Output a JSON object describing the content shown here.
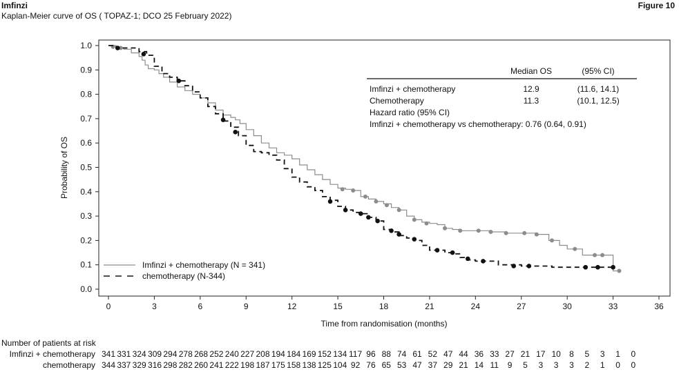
{
  "header": {
    "brand": "Imfinzi",
    "subtitle": "Kaplan-Meier curve of OS ( TOPAZ-1; DCO 25 February 2022)",
    "figure_label": "Figure 10"
  },
  "colors": {
    "imfinzi": "#8c8c8c",
    "chemo": "#111111",
    "axis": "#222222"
  },
  "chart_data": {
    "type": "line",
    "title": "",
    "xlabel": "Time from randomisation (months)",
    "ylabel": "Probability of OS",
    "xlim": [
      0,
      36
    ],
    "ylim": [
      0,
      1
    ],
    "x_ticks": [
      0,
      3,
      6,
      9,
      12,
      15,
      18,
      21,
      24,
      27,
      30,
      33,
      36
    ],
    "y_ticks": [
      0.0,
      0.1,
      0.2,
      0.3,
      0.4,
      0.5,
      0.6,
      0.7,
      0.8,
      0.9,
      1.0
    ],
    "legend_position": "bottom-left",
    "series": [
      {
        "name": "Imfinzi + chemotherapy (N = 341)",
        "style": "solid",
        "points": [
          [
            0,
            1.0
          ],
          [
            0.5,
            0.99
          ],
          [
            1.0,
            0.985
          ],
          [
            1.5,
            0.97
          ],
          [
            2.0,
            0.955
          ],
          [
            2.2,
            0.94
          ],
          [
            2.4,
            0.92
          ],
          [
            2.6,
            0.905
          ],
          [
            3.0,
            0.9
          ],
          [
            3.3,
            0.885
          ],
          [
            3.6,
            0.87
          ],
          [
            4.0,
            0.85
          ],
          [
            4.5,
            0.83
          ],
          [
            5.0,
            0.815
          ],
          [
            5.5,
            0.8
          ],
          [
            6.0,
            0.785
          ],
          [
            6.5,
            0.765
          ],
          [
            7.0,
            0.735
          ],
          [
            7.5,
            0.715
          ],
          [
            8.0,
            0.705
          ],
          [
            8.3,
            0.695
          ],
          [
            8.6,
            0.68
          ],
          [
            9.0,
            0.655
          ],
          [
            9.5,
            0.63
          ],
          [
            10.0,
            0.6
          ],
          [
            10.5,
            0.58
          ],
          [
            11.0,
            0.56
          ],
          [
            11.5,
            0.55
          ],
          [
            12.0,
            0.535
          ],
          [
            12.5,
            0.51
          ],
          [
            13.0,
            0.49
          ],
          [
            13.5,
            0.47
          ],
          [
            14.0,
            0.45
          ],
          [
            14.5,
            0.43
          ],
          [
            15.0,
            0.415
          ],
          [
            15.5,
            0.41
          ],
          [
            16.0,
            0.405
          ],
          [
            16.5,
            0.38
          ],
          [
            17.0,
            0.37
          ],
          [
            17.5,
            0.36
          ],
          [
            18.0,
            0.35
          ],
          [
            18.5,
            0.335
          ],
          [
            19.0,
            0.325
          ],
          [
            19.5,
            0.3
          ],
          [
            20.0,
            0.285
          ],
          [
            20.5,
            0.275
          ],
          [
            21.0,
            0.27
          ],
          [
            21.5,
            0.265
          ],
          [
            22.0,
            0.25
          ],
          [
            22.5,
            0.245
          ],
          [
            23.0,
            0.24
          ],
          [
            24.0,
            0.24
          ],
          [
            25.0,
            0.235
          ],
          [
            26.0,
            0.23
          ],
          [
            27.0,
            0.23
          ],
          [
            28.0,
            0.225
          ],
          [
            28.8,
            0.2
          ],
          [
            29.5,
            0.18
          ],
          [
            30.0,
            0.165
          ],
          [
            30.5,
            0.165
          ],
          [
            31.0,
            0.14
          ],
          [
            33.0,
            0.14
          ],
          [
            33.0,
            0.075
          ],
          [
            33.4,
            0.075
          ]
        ],
        "censored": [
          [
            0.3,
            0.995
          ],
          [
            0.8,
            0.99
          ],
          [
            15.3,
            0.41
          ],
          [
            16.0,
            0.405
          ],
          [
            16.8,
            0.38
          ],
          [
            17.5,
            0.36
          ],
          [
            18.2,
            0.345
          ],
          [
            19.0,
            0.325
          ],
          [
            20.0,
            0.285
          ],
          [
            20.8,
            0.27
          ],
          [
            22.0,
            0.25
          ],
          [
            23.0,
            0.24
          ],
          [
            24.2,
            0.24
          ],
          [
            25.0,
            0.235
          ],
          [
            26.0,
            0.23
          ],
          [
            27.2,
            0.23
          ],
          [
            28.0,
            0.225
          ],
          [
            29.0,
            0.2
          ],
          [
            30.5,
            0.165
          ],
          [
            31.8,
            0.14
          ],
          [
            32.3,
            0.14
          ],
          [
            33.4,
            0.075
          ]
        ]
      },
      {
        "name": "chemotherapy (N-344)",
        "style": "dashed",
        "points": [
          [
            0,
            1.0
          ],
          [
            0.5,
            0.99
          ],
          [
            1.0,
            0.99
          ],
          [
            2.0,
            0.975
          ],
          [
            2.5,
            0.96
          ],
          [
            3.0,
            0.915
          ],
          [
            3.5,
            0.885
          ],
          [
            4.0,
            0.87
          ],
          [
            4.5,
            0.855
          ],
          [
            5.0,
            0.835
          ],
          [
            5.5,
            0.81
          ],
          [
            6.0,
            0.785
          ],
          [
            6.5,
            0.75
          ],
          [
            7.0,
            0.72
          ],
          [
            7.5,
            0.69
          ],
          [
            8.0,
            0.665
          ],
          [
            8.5,
            0.63
          ],
          [
            9.0,
            0.59
          ],
          [
            9.5,
            0.565
          ],
          [
            10.0,
            0.56
          ],
          [
            10.5,
            0.55
          ],
          [
            11.0,
            0.53
          ],
          [
            11.5,
            0.495
          ],
          [
            12.0,
            0.46
          ],
          [
            12.5,
            0.44
          ],
          [
            13.0,
            0.42
          ],
          [
            13.5,
            0.405
          ],
          [
            14.0,
            0.38
          ],
          [
            14.5,
            0.365
          ],
          [
            15.0,
            0.34
          ],
          [
            15.5,
            0.325
          ],
          [
            16.0,
            0.315
          ],
          [
            16.5,
            0.31
          ],
          [
            17.0,
            0.295
          ],
          [
            17.5,
            0.28
          ],
          [
            18.0,
            0.245
          ],
          [
            18.5,
            0.235
          ],
          [
            19.0,
            0.22
          ],
          [
            19.5,
            0.21
          ],
          [
            20.0,
            0.2
          ],
          [
            20.5,
            0.18
          ],
          [
            21.0,
            0.16
          ],
          [
            22.0,
            0.15
          ],
          [
            22.5,
            0.145
          ],
          [
            23.0,
            0.13
          ],
          [
            23.5,
            0.12
          ],
          [
            24.0,
            0.115
          ],
          [
            25.0,
            0.115
          ],
          [
            25.5,
            0.1
          ],
          [
            27.0,
            0.095
          ],
          [
            28.0,
            0.095
          ],
          [
            29.0,
            0.09
          ],
          [
            33.0,
            0.09
          ]
        ],
        "censored": [
          [
            0.6,
            0.99
          ],
          [
            2.3,
            0.965
          ],
          [
            4.6,
            0.855
          ],
          [
            7.5,
            0.695
          ],
          [
            8.3,
            0.645
          ],
          [
            14.5,
            0.36
          ],
          [
            15.5,
            0.325
          ],
          [
            16.5,
            0.31
          ],
          [
            17.0,
            0.295
          ],
          [
            17.6,
            0.28
          ],
          [
            18.5,
            0.24
          ],
          [
            19.0,
            0.225
          ],
          [
            20.0,
            0.205
          ],
          [
            21.5,
            0.16
          ],
          [
            22.5,
            0.15
          ],
          [
            23.5,
            0.125
          ],
          [
            24.5,
            0.115
          ],
          [
            26.5,
            0.095
          ],
          [
            27.5,
            0.095
          ],
          [
            31.2,
            0.09
          ],
          [
            32.0,
            0.09
          ],
          [
            33.0,
            0.09
          ]
        ]
      }
    ],
    "stats_table": {
      "header_median": "Median OS",
      "header_ci": "(95% CI)",
      "rows": [
        {
          "label": "Imfinzi + chemotherapy",
          "median": "12.9",
          "ci": "(11.6, 14.1)"
        },
        {
          "label": "Chemotherapy",
          "median": "11.3",
          "ci": "(10.1, 12.5)"
        }
      ],
      "hr_title": "Hazard ratio (95% CI)",
      "hr_line": "Imfinzi + chemotherapy vs chemotherapy: 0.76 (0.64, 0.91)"
    },
    "at_risk": {
      "title": "Number of patients at risk",
      "rows": [
        {
          "label": "Imfinzi + chemotherapy",
          "values": [
            341,
            331,
            324,
            309,
            294,
            278,
            268,
            252,
            240,
            227,
            208,
            194,
            184,
            169,
            152,
            134,
            117,
            96,
            88,
            74,
            61,
            52,
            47,
            44,
            36,
            33,
            27,
            21,
            17,
            10,
            8,
            5,
            3,
            1,
            0
          ]
        },
        {
          "label": "chemotherapy",
          "values": [
            344,
            337,
            329,
            316,
            298,
            282,
            260,
            241,
            222,
            198,
            187,
            175,
            158,
            138,
            125,
            104,
            92,
            76,
            65,
            53,
            47,
            37,
            29,
            21,
            14,
            11,
            9,
            5,
            3,
            3,
            3,
            2,
            1,
            0,
            0
          ]
        }
      ]
    }
  }
}
